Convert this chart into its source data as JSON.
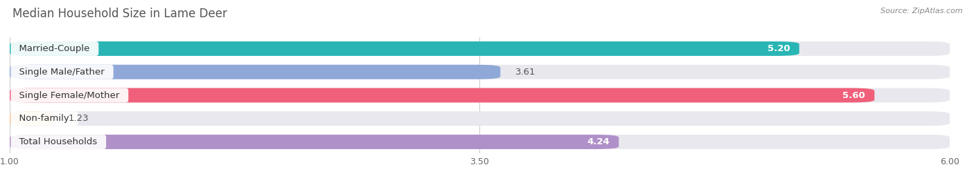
{
  "title": "Median Household Size in Lame Deer",
  "source": "Source: ZipAtlas.com",
  "categories": [
    "Married-Couple",
    "Single Male/Father",
    "Single Female/Mother",
    "Non-family",
    "Total Households"
  ],
  "values": [
    5.2,
    3.61,
    5.6,
    1.23,
    4.24
  ],
  "bar_colors": [
    "#2ab5b5",
    "#8fa8d8",
    "#f0607a",
    "#f5c89a",
    "#b090c8"
  ],
  "value_inside": [
    true,
    false,
    true,
    false,
    true
  ],
  "xmin": 1.0,
  "xmax": 6.0,
  "xticks": [
    1.0,
    3.5,
    6.0
  ],
  "background_color": "#f5f5f8",
  "bar_bg_color": "#e8e8ee",
  "title_fontsize": 12,
  "label_fontsize": 9.5,
  "value_fontsize": 9.5
}
